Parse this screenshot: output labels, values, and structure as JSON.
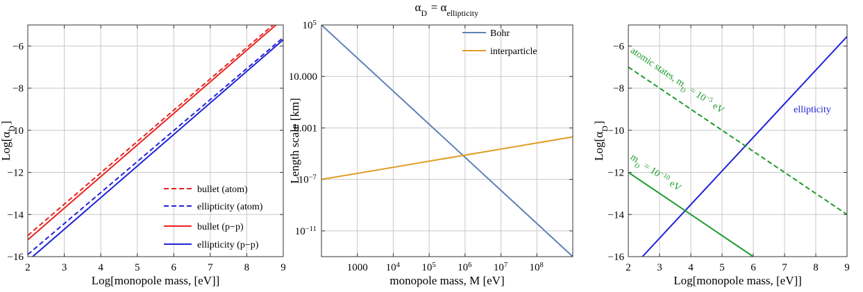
{
  "chart_data": [
    {
      "type": "line",
      "title": "",
      "xlabel": "Log[monopole mass, [eV]]",
      "ylabel": "Log[α_D]",
      "xlim": [
        2,
        9
      ],
      "ylim": [
        -16,
        -5
      ],
      "xticks": [
        2,
        3,
        4,
        5,
        6,
        7,
        8,
        9
      ],
      "yticks": [
        -16,
        -14,
        -12,
        -10,
        -8,
        -6
      ],
      "xtick_labels": [
        "2",
        "3",
        "4",
        "5",
        "6",
        "7",
        "8",
        "9"
      ],
      "ytick_labels": [
        "−16",
        "−14",
        "−12",
        "−10",
        "−8",
        "−6"
      ],
      "grid": true,
      "legend_position": "bottom-right",
      "series": [
        {
          "name": "bullet (atom)",
          "color": "#e8211f",
          "dash": "dashed",
          "x": [
            2,
            8.72
          ],
          "y": [
            -15.0,
            -5.0
          ]
        },
        {
          "name": "ellipticity (atom)",
          "color": "#1f22d6",
          "dash": "dashed",
          "x": [
            2,
            9
          ],
          "y": [
            -15.9,
            -5.6
          ]
        },
        {
          "name": "bullet (p−p)",
          "color": "#e8211f",
          "dash": "solid",
          "x": [
            2,
            8.8
          ],
          "y": [
            -15.2,
            -5.0
          ]
        },
        {
          "name": "ellipticity (p−p)",
          "color": "#1f22d6",
          "dash": "solid",
          "x": [
            2,
            9
          ],
          "y": [
            -16.2,
            -5.7
          ]
        }
      ]
    },
    {
      "type": "line",
      "title": "α_D = α_ellipticity",
      "xlabel": "monopole mass, M [eV]",
      "ylabel": "Length scale [km]",
      "xlim": [
        100,
        1000000000
      ],
      "ylim": [
        1e-13,
        100000
      ],
      "xscale": "log",
      "yscale": "log",
      "xticks": [
        1000,
        10000,
        100000,
        1000000,
        10000000,
        100000000
      ],
      "yticks": [
        100000,
        10,
        0.001,
        1e-07,
        1e-11
      ],
      "xtick_labels": [
        "1000",
        "10^4",
        "10^5",
        "10^6",
        "10^7",
        "10^8"
      ],
      "ytick_labels": [
        "10^5",
        "10.000",
        "0.001",
        "10^-7",
        "10^-11"
      ],
      "grid": true,
      "legend_position": "top-right",
      "series": [
        {
          "name": "Bohr",
          "color": "#5e81b5",
          "x": [
            100,
            1000000000
          ],
          "y": [
            100000,
            1e-13
          ]
        },
        {
          "name": "interparticle",
          "color": "#e19c24",
          "x": [
            100,
            1000000000
          ],
          "y": [
            1e-07,
            0.0002
          ]
        }
      ]
    },
    {
      "type": "line",
      "title": "",
      "xlabel": "Log[monopole mass, [eV]]",
      "ylabel": "Log[α_D]",
      "xlim": [
        2,
        9
      ],
      "ylim": [
        -16,
        -5
      ],
      "xticks": [
        2,
        3,
        4,
        5,
        6,
        7,
        8,
        9
      ],
      "yticks": [
        -16,
        -14,
        -12,
        -10,
        -8,
        -6
      ],
      "xtick_labels": [
        "2",
        "3",
        "4",
        "5",
        "6",
        "7",
        "8",
        "9"
      ],
      "ytick_labels": [
        "−16",
        "−14",
        "−12",
        "−10",
        "−8",
        "−6"
      ],
      "grid": true,
      "series": [
        {
          "name": "ellipticity",
          "color": "#1f22d6",
          "dash": "solid",
          "x": [
            2.45,
            9
          ],
          "y": [
            -16,
            -5.55
          ]
        },
        {
          "name": "atomic states, m_D = 10^-5 eV",
          "color": "#1c9a2a",
          "dash": "dashed",
          "x": [
            2,
            9
          ],
          "y": [
            -7,
            -14
          ]
        },
        {
          "name": "m_D = 10^-10 eV",
          "color": "#1c9a2a",
          "dash": "solid",
          "x": [
            2,
            6
          ],
          "y": [
            -12,
            -16
          ]
        }
      ],
      "annotations": [
        {
          "text": "ellipticity",
          "color": "#1f22d6"
        },
        {
          "text": "atomic states, m_D = 10^-5 eV",
          "color": "#1c9a2a"
        },
        {
          "text": "m_D = 10^-10 eV",
          "color": "#1c9a2a"
        }
      ]
    }
  ]
}
